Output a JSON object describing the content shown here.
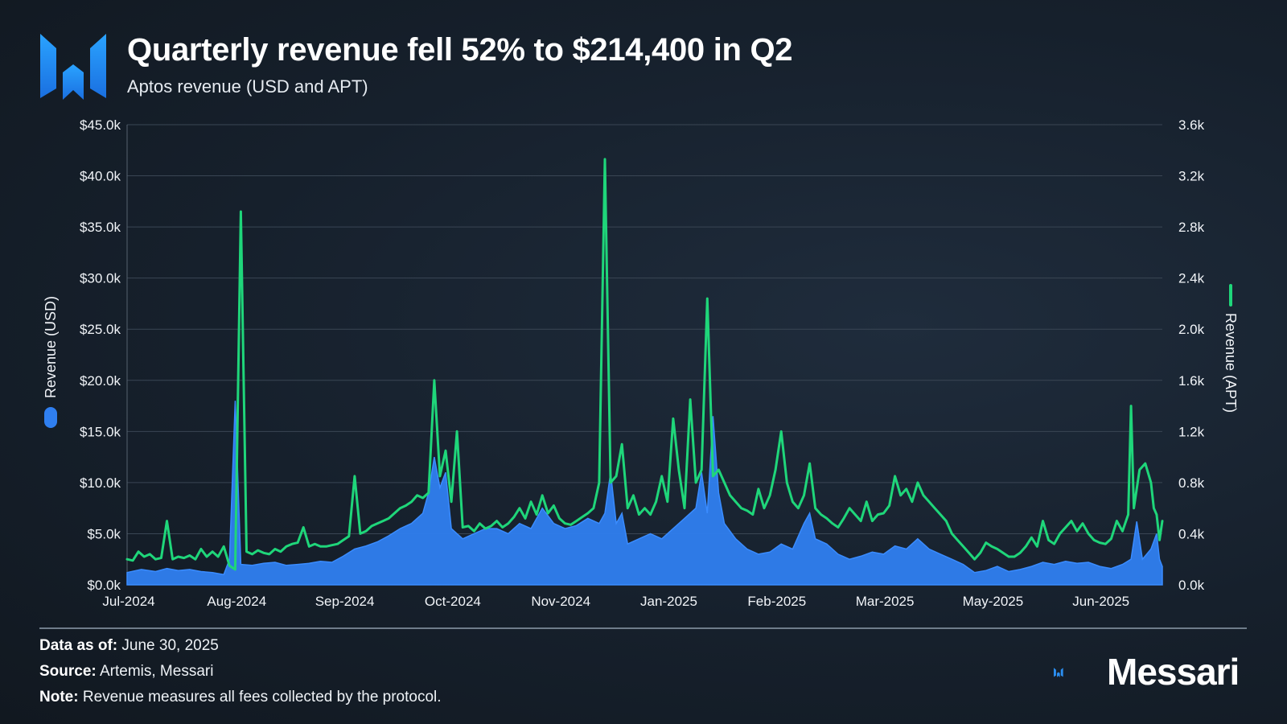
{
  "header": {
    "title": "Quarterly revenue fell 52% to $214,400 in Q2",
    "subtitle": "Aptos revenue (USD and APT)"
  },
  "colors": {
    "usd": "#2f7ff0",
    "apt": "#1fd67a",
    "grid": "#3a4654",
    "brand": "#2b8ef0"
  },
  "footer": {
    "data_as_of_label": "Data as of:",
    "data_as_of_value": "June 30, 2025",
    "source_label": "Source:",
    "source_value": "Artemis, Messari",
    "note_label": "Note:",
    "note_value": "Revenue measures all fees collected by the protocol.",
    "brand": "Messari"
  },
  "chart_data": {
    "type": "area+line",
    "title": "Quarterly revenue fell 52% to $214,400 in Q2",
    "subtitle": "Aptos revenue (USD and APT)",
    "left_axis": {
      "label": "Revenue (USD)",
      "ylim": [
        0,
        45000
      ],
      "ticks": [
        "$0.0k",
        "$5.0k",
        "$10.0k",
        "$15.0k",
        "$20.0k",
        "$25.0k",
        "$30.0k",
        "$35.0k",
        "$40.0k",
        "$45.0k"
      ]
    },
    "right_axis": {
      "label": "Revenue (APT)",
      "ylim": [
        0,
        3600
      ],
      "ticks": [
        "0.0k",
        "0.4k",
        "0.8k",
        "1.2k",
        "1.6k",
        "2.0k",
        "2.4k",
        "2.8k",
        "3.2k",
        "3.6k"
      ]
    },
    "x_tick_labels": [
      "Jul-2024",
      "Aug-2024",
      "Sep-2024",
      "Oct-2024",
      "Nov-2024",
      "Jan-2025",
      "Feb-2025",
      "Mar-2025",
      "May-2025",
      "Jun-2025"
    ],
    "x_range_days": [
      0,
      364
    ],
    "grid": true,
    "series": [
      {
        "name": "Revenue (USD)",
        "axis": "left",
        "style": "area",
        "points": [
          [
            0,
            1200
          ],
          [
            5,
            1500
          ],
          [
            10,
            1300
          ],
          [
            14,
            1600
          ],
          [
            18,
            1400
          ],
          [
            22,
            1500
          ],
          [
            26,
            1300
          ],
          [
            30,
            1200
          ],
          [
            34,
            1000
          ],
          [
            36,
            2500
          ],
          [
            38,
            18000
          ],
          [
            40,
            2000
          ],
          [
            44,
            1900
          ],
          [
            48,
            2100
          ],
          [
            52,
            2200
          ],
          [
            56,
            1900
          ],
          [
            60,
            2000
          ],
          [
            64,
            2100
          ],
          [
            68,
            2300
          ],
          [
            72,
            2200
          ],
          [
            76,
            2800
          ],
          [
            80,
            3500
          ],
          [
            84,
            3800
          ],
          [
            88,
            4200
          ],
          [
            92,
            4800
          ],
          [
            96,
            5500
          ],
          [
            100,
            6000
          ],
          [
            104,
            7000
          ],
          [
            106,
            9000
          ],
          [
            108,
            12500
          ],
          [
            110,
            9500
          ],
          [
            112,
            11000
          ],
          [
            114,
            5500
          ],
          [
            118,
            4500
          ],
          [
            122,
            5000
          ],
          [
            126,
            5500
          ],
          [
            130,
            5500
          ],
          [
            134,
            5000
          ],
          [
            138,
            6000
          ],
          [
            142,
            5500
          ],
          [
            146,
            7500
          ],
          [
            150,
            6000
          ],
          [
            154,
            5500
          ],
          [
            158,
            5800
          ],
          [
            162,
            6500
          ],
          [
            166,
            6000
          ],
          [
            168,
            7000
          ],
          [
            170,
            11000
          ],
          [
            172,
            6000
          ],
          [
            174,
            7000
          ],
          [
            176,
            4000
          ],
          [
            180,
            4500
          ],
          [
            184,
            5000
          ],
          [
            188,
            4500
          ],
          [
            192,
            5500
          ],
          [
            196,
            6500
          ],
          [
            200,
            7500
          ],
          [
            202,
            11000
          ],
          [
            204,
            7000
          ],
          [
            206,
            16500
          ],
          [
            208,
            9000
          ],
          [
            210,
            6000
          ],
          [
            214,
            4500
          ],
          [
            218,
            3500
          ],
          [
            222,
            3000
          ],
          [
            226,
            3200
          ],
          [
            230,
            4000
          ],
          [
            234,
            3500
          ],
          [
            238,
            6000
          ],
          [
            240,
            7000
          ],
          [
            242,
            4500
          ],
          [
            246,
            4000
          ],
          [
            250,
            3000
          ],
          [
            254,
            2500
          ],
          [
            258,
            2800
          ],
          [
            262,
            3200
          ],
          [
            266,
            3000
          ],
          [
            270,
            3800
          ],
          [
            274,
            3500
          ],
          [
            278,
            4500
          ],
          [
            282,
            3500
          ],
          [
            286,
            3000
          ],
          [
            290,
            2500
          ],
          [
            294,
            2000
          ],
          [
            298,
            1200
          ],
          [
            302,
            1400
          ],
          [
            306,
            1800
          ],
          [
            310,
            1300
          ],
          [
            314,
            1500
          ],
          [
            318,
            1800
          ],
          [
            322,
            2200
          ],
          [
            326,
            2000
          ],
          [
            330,
            2300
          ],
          [
            334,
            2100
          ],
          [
            338,
            2200
          ],
          [
            342,
            1800
          ],
          [
            346,
            1600
          ],
          [
            350,
            2000
          ],
          [
            353,
            2500
          ],
          [
            355,
            6200
          ],
          [
            357,
            2500
          ],
          [
            360,
            3500
          ],
          [
            362,
            5000
          ],
          [
            363,
            2500
          ],
          [
            364,
            1800
          ]
        ]
      },
      {
        "name": "Revenue (APT)",
        "axis": "right",
        "style": "line",
        "points": [
          [
            0,
            200
          ],
          [
            2,
            190
          ],
          [
            4,
            260
          ],
          [
            6,
            220
          ],
          [
            8,
            240
          ],
          [
            10,
            200
          ],
          [
            12,
            210
          ],
          [
            14,
            500
          ],
          [
            16,
            200
          ],
          [
            18,
            220
          ],
          [
            20,
            210
          ],
          [
            22,
            230
          ],
          [
            24,
            200
          ],
          [
            26,
            280
          ],
          [
            28,
            220
          ],
          [
            30,
            260
          ],
          [
            32,
            220
          ],
          [
            34,
            300
          ],
          [
            36,
            150
          ],
          [
            38,
            120
          ],
          [
            40,
            2920
          ],
          [
            42,
            260
          ],
          [
            44,
            240
          ],
          [
            46,
            270
          ],
          [
            48,
            250
          ],
          [
            50,
            240
          ],
          [
            52,
            280
          ],
          [
            54,
            260
          ],
          [
            56,
            300
          ],
          [
            58,
            320
          ],
          [
            60,
            330
          ],
          [
            62,
            450
          ],
          [
            64,
            300
          ],
          [
            66,
            320
          ],
          [
            68,
            300
          ],
          [
            70,
            300
          ],
          [
            72,
            310
          ],
          [
            74,
            320
          ],
          [
            76,
            350
          ],
          [
            78,
            380
          ],
          [
            80,
            850
          ],
          [
            82,
            400
          ],
          [
            84,
            420
          ],
          [
            86,
            460
          ],
          [
            88,
            480
          ],
          [
            90,
            500
          ],
          [
            92,
            520
          ],
          [
            94,
            560
          ],
          [
            96,
            600
          ],
          [
            98,
            620
          ],
          [
            100,
            650
          ],
          [
            102,
            700
          ],
          [
            104,
            680
          ],
          [
            106,
            720
          ],
          [
            108,
            1600
          ],
          [
            110,
            850
          ],
          [
            112,
            1050
          ],
          [
            114,
            650
          ],
          [
            116,
            1200
          ],
          [
            118,
            450
          ],
          [
            120,
            460
          ],
          [
            122,
            420
          ],
          [
            124,
            480
          ],
          [
            126,
            440
          ],
          [
            128,
            460
          ],
          [
            130,
            500
          ],
          [
            132,
            450
          ],
          [
            134,
            480
          ],
          [
            136,
            530
          ],
          [
            138,
            600
          ],
          [
            140,
            520
          ],
          [
            142,
            650
          ],
          [
            144,
            550
          ],
          [
            146,
            700
          ],
          [
            148,
            560
          ],
          [
            150,
            620
          ],
          [
            152,
            520
          ],
          [
            154,
            480
          ],
          [
            156,
            470
          ],
          [
            158,
            500
          ],
          [
            160,
            530
          ],
          [
            162,
            560
          ],
          [
            164,
            600
          ],
          [
            166,
            800
          ],
          [
            168,
            3330
          ],
          [
            170,
            800
          ],
          [
            172,
            850
          ],
          [
            174,
            1100
          ],
          [
            176,
            600
          ],
          [
            178,
            700
          ],
          [
            180,
            550
          ],
          [
            182,
            600
          ],
          [
            184,
            550
          ],
          [
            186,
            650
          ],
          [
            188,
            850
          ],
          [
            190,
            650
          ],
          [
            192,
            1300
          ],
          [
            194,
            900
          ],
          [
            196,
            600
          ],
          [
            198,
            1450
          ],
          [
            200,
            800
          ],
          [
            202,
            900
          ],
          [
            204,
            2240
          ],
          [
            206,
            850
          ],
          [
            208,
            900
          ],
          [
            210,
            800
          ],
          [
            212,
            700
          ],
          [
            214,
            650
          ],
          [
            216,
            600
          ],
          [
            218,
            580
          ],
          [
            220,
            550
          ],
          [
            222,
            750
          ],
          [
            224,
            600
          ],
          [
            226,
            700
          ],
          [
            228,
            900
          ],
          [
            230,
            1200
          ],
          [
            232,
            800
          ],
          [
            234,
            650
          ],
          [
            236,
            600
          ],
          [
            238,
            700
          ],
          [
            240,
            950
          ],
          [
            242,
            600
          ],
          [
            244,
            550
          ],
          [
            246,
            520
          ],
          [
            248,
            480
          ],
          [
            250,
            450
          ],
          [
            252,
            520
          ],
          [
            254,
            600
          ],
          [
            256,
            550
          ],
          [
            258,
            500
          ],
          [
            260,
            650
          ],
          [
            262,
            500
          ],
          [
            264,
            550
          ],
          [
            266,
            560
          ],
          [
            268,
            620
          ],
          [
            270,
            850
          ],
          [
            272,
            700
          ],
          [
            274,
            750
          ],
          [
            276,
            650
          ],
          [
            278,
            800
          ],
          [
            280,
            700
          ],
          [
            282,
            650
          ],
          [
            284,
            600
          ],
          [
            286,
            550
          ],
          [
            288,
            500
          ],
          [
            290,
            400
          ],
          [
            292,
            350
          ],
          [
            294,
            300
          ],
          [
            296,
            250
          ],
          [
            298,
            200
          ],
          [
            300,
            250
          ],
          [
            302,
            330
          ],
          [
            304,
            300
          ],
          [
            306,
            280
          ],
          [
            308,
            250
          ],
          [
            310,
            220
          ],
          [
            312,
            220
          ],
          [
            314,
            250
          ],
          [
            316,
            300
          ],
          [
            318,
            370
          ],
          [
            320,
            300
          ],
          [
            322,
            500
          ],
          [
            324,
            350
          ],
          [
            326,
            320
          ],
          [
            328,
            400
          ],
          [
            330,
            450
          ],
          [
            332,
            500
          ],
          [
            334,
            420
          ],
          [
            336,
            480
          ],
          [
            338,
            400
          ],
          [
            340,
            350
          ],
          [
            342,
            330
          ],
          [
            344,
            320
          ],
          [
            346,
            360
          ],
          [
            348,
            500
          ],
          [
            350,
            420
          ],
          [
            352,
            550
          ],
          [
            353,
            1400
          ],
          [
            354,
            600
          ],
          [
            356,
            900
          ],
          [
            358,
            950
          ],
          [
            360,
            800
          ],
          [
            361,
            600
          ],
          [
            362,
            550
          ],
          [
            363,
            350
          ],
          [
            364,
            500
          ]
        ]
      }
    ]
  }
}
